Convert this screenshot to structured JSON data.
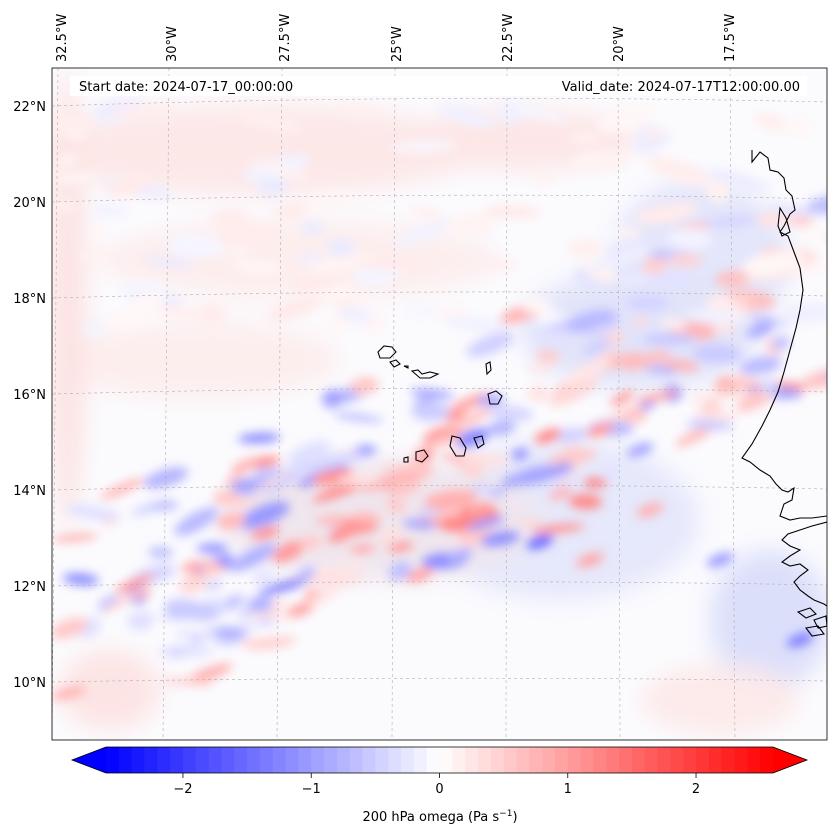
{
  "map": {
    "start_label": "Start date: 2024-07-17_00:00:00",
    "valid_label": "Valid_date: 2024-07-17T12:00:00.00",
    "lon_labels": [
      "32.5°W",
      "30°W",
      "27.5°W",
      "25°W",
      "22.5°W",
      "20°W",
      "17.5°W"
    ],
    "lat_labels": [
      "22°N",
      "20°N",
      "18°N",
      "16°N",
      "14°N",
      "12°N",
      "10°N"
    ],
    "coast_color": "#000000",
    "grid_color": "#b0b0b0"
  },
  "colorbar": {
    "label_main": "200 hPa omega (Pa s",
    "label_exp": "−1",
    "label_tail": ")",
    "ticks": [
      "−2",
      "−1",
      "0",
      "1",
      "2"
    ],
    "tick_values": [
      -2,
      -1,
      0,
      1,
      2
    ],
    "range": [
      -2.6,
      2.6
    ],
    "negative_color": "#0000ff",
    "zero_color": "#ffffff",
    "positive_color": "#ff0000"
  }
}
